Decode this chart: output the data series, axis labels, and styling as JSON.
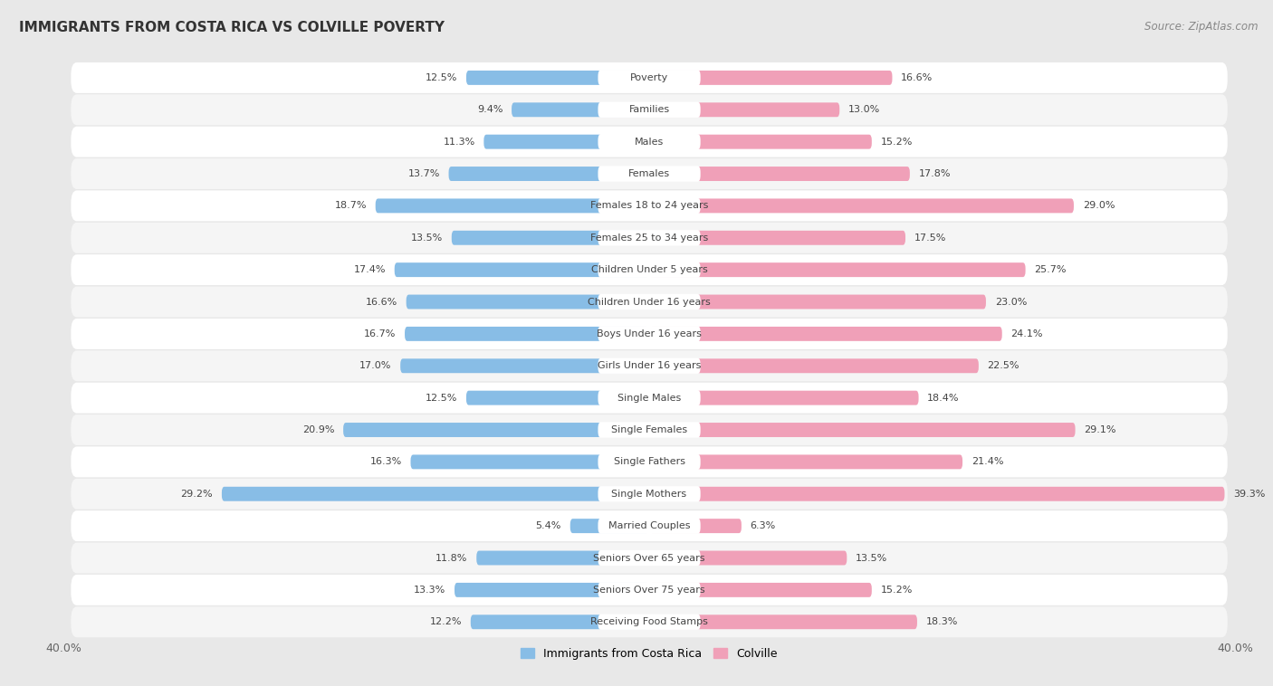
{
  "title": "IMMIGRANTS FROM COSTA RICA VS COLVILLE POVERTY",
  "source": "Source: ZipAtlas.com",
  "categories": [
    "Poverty",
    "Families",
    "Males",
    "Females",
    "Females 18 to 24 years",
    "Females 25 to 34 years",
    "Children Under 5 years",
    "Children Under 16 years",
    "Boys Under 16 years",
    "Girls Under 16 years",
    "Single Males",
    "Single Females",
    "Single Fathers",
    "Single Mothers",
    "Married Couples",
    "Seniors Over 65 years",
    "Seniors Over 75 years",
    "Receiving Food Stamps"
  ],
  "left_values": [
    12.5,
    9.4,
    11.3,
    13.7,
    18.7,
    13.5,
    17.4,
    16.6,
    16.7,
    17.0,
    12.5,
    20.9,
    16.3,
    29.2,
    5.4,
    11.8,
    13.3,
    12.2
  ],
  "right_values": [
    16.6,
    13.0,
    15.2,
    17.8,
    29.0,
    17.5,
    25.7,
    23.0,
    24.1,
    22.5,
    18.4,
    29.1,
    21.4,
    39.3,
    6.3,
    13.5,
    15.2,
    18.3
  ],
  "left_color": "#88bde6",
  "right_color": "#f0a0b8",
  "left_label": "Immigrants from Costa Rica",
  "right_label": "Colville",
  "xlim": 40.0,
  "bg_color": "#e8e8e8",
  "row_color_odd": "#f5f5f5",
  "row_color_even": "#ffffff",
  "title_fontsize": 11,
  "source_fontsize": 8.5,
  "cat_fontsize": 8,
  "value_fontsize": 8,
  "legend_fontsize": 9
}
